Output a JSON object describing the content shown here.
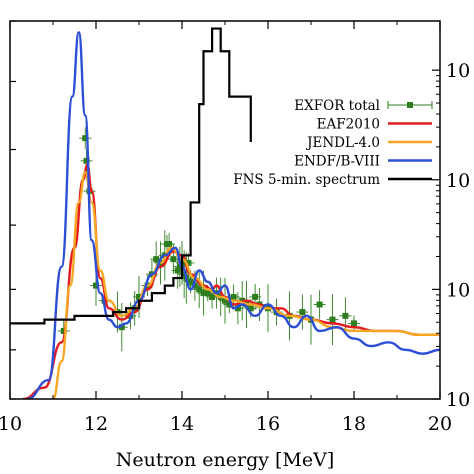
{
  "chart_data": {
    "type": "line",
    "xlabel": "Neutron energy [MeV]",
    "ylabel": "",
    "xlim": [
      10,
      20
    ],
    "x_ticks": [
      10,
      12,
      14,
      16,
      18,
      20
    ],
    "right_tick_labels": [
      "10",
      "10",
      "10",
      "10"
    ],
    "grid": false,
    "legend_position": "right",
    "colors": {
      "exfor": "#2e7d1e",
      "eaf": "#e41a1c",
      "jendl": "#f5a623",
      "endf": "#2c4fd6",
      "fns": "#000000"
    },
    "series": [
      {
        "name": "EXFOR total",
        "color": "#2e7d1e",
        "style": "points",
        "points": [
          [
            11.25,
            0.18
          ],
          [
            11.75,
            0.69
          ],
          [
            11.78,
            0.63
          ],
          [
            11.85,
            0.55
          ],
          [
            12.0,
            0.3
          ],
          [
            12.2,
            0.26
          ],
          [
            12.5,
            0.23
          ],
          [
            12.6,
            0.19
          ],
          [
            12.8,
            0.22
          ],
          [
            12.9,
            0.24
          ],
          [
            13.0,
            0.27
          ],
          [
            13.2,
            0.3
          ],
          [
            13.3,
            0.33
          ],
          [
            13.4,
            0.37
          ],
          [
            13.5,
            0.36
          ],
          [
            13.6,
            0.38
          ],
          [
            13.65,
            0.41
          ],
          [
            13.7,
            0.41
          ],
          [
            13.8,
            0.37
          ],
          [
            13.9,
            0.34
          ],
          [
            13.95,
            0.35
          ],
          [
            14.0,
            0.36
          ],
          [
            14.05,
            0.33
          ],
          [
            14.1,
            0.32
          ],
          [
            14.15,
            0.36
          ],
          [
            14.2,
            0.31
          ],
          [
            14.3,
            0.3
          ],
          [
            14.4,
            0.29
          ],
          [
            14.5,
            0.28
          ],
          [
            14.6,
            0.28
          ],
          [
            14.7,
            0.27
          ],
          [
            14.8,
            0.28
          ],
          [
            14.9,
            0.27
          ],
          [
            15.0,
            0.26
          ],
          [
            15.1,
            0.25
          ],
          [
            15.2,
            0.27
          ],
          [
            15.3,
            0.24
          ],
          [
            15.4,
            0.26
          ],
          [
            15.5,
            0.25
          ],
          [
            15.6,
            0.24
          ],
          [
            15.7,
            0.27
          ],
          [
            15.8,
            0.25
          ],
          [
            16.0,
            0.24
          ],
          [
            16.2,
            0.23
          ],
          [
            16.5,
            0.22
          ],
          [
            16.8,
            0.23
          ],
          [
            17.0,
            0.21
          ],
          [
            17.2,
            0.25
          ],
          [
            17.5,
            0.21
          ],
          [
            17.8,
            0.22
          ],
          [
            18.0,
            0.2
          ]
        ]
      },
      {
        "name": "EAF2010",
        "color": "#e41a1c",
        "style": "line",
        "points": [
          [
            10.3,
            0.0
          ],
          [
            10.8,
            0.03
          ],
          [
            11.2,
            0.15
          ],
          [
            11.5,
            0.4
          ],
          [
            11.7,
            0.58
          ],
          [
            11.8,
            0.62
          ],
          [
            11.9,
            0.55
          ],
          [
            12.1,
            0.32
          ],
          [
            12.3,
            0.24
          ],
          [
            12.6,
            0.21
          ],
          [
            12.9,
            0.23
          ],
          [
            13.2,
            0.29
          ],
          [
            13.5,
            0.35
          ],
          [
            13.8,
            0.39
          ],
          [
            14.0,
            0.38
          ],
          [
            14.2,
            0.33
          ],
          [
            14.5,
            0.3
          ],
          [
            14.7,
            0.29
          ],
          [
            14.8,
            0.3
          ],
          [
            15.0,
            0.27
          ],
          [
            15.2,
            0.25
          ],
          [
            15.5,
            0.26
          ],
          [
            15.8,
            0.25
          ],
          [
            16.0,
            0.24
          ],
          [
            16.3,
            0.24
          ],
          [
            16.6,
            0.22
          ],
          [
            17.0,
            0.21
          ],
          [
            17.5,
            0.2
          ],
          [
            18.0,
            0.19
          ],
          [
            18.5,
            0.18
          ],
          [
            19.0,
            0.18
          ],
          [
            19.5,
            0.17
          ],
          [
            20.0,
            0.17
          ]
        ]
      },
      {
        "name": "JENDL-4.0",
        "color": "#f5a623",
        "style": "line",
        "points": [
          [
            11.0,
            0.0
          ],
          [
            11.2,
            0.1
          ],
          [
            11.4,
            0.3
          ],
          [
            11.6,
            0.52
          ],
          [
            11.75,
            0.6
          ],
          [
            11.9,
            0.52
          ],
          [
            12.1,
            0.34
          ],
          [
            12.3,
            0.26
          ],
          [
            12.6,
            0.22
          ],
          [
            12.9,
            0.24
          ],
          [
            13.2,
            0.3
          ],
          [
            13.5,
            0.36
          ],
          [
            13.75,
            0.4
          ],
          [
            14.0,
            0.37
          ],
          [
            14.3,
            0.32
          ],
          [
            14.6,
            0.29
          ],
          [
            14.9,
            0.27
          ],
          [
            15.2,
            0.26
          ],
          [
            15.6,
            0.25
          ],
          [
            16.0,
            0.24
          ],
          [
            16.5,
            0.22
          ],
          [
            17.0,
            0.21
          ],
          [
            17.5,
            0.19
          ],
          [
            18.0,
            0.18
          ],
          [
            18.5,
            0.18
          ],
          [
            19.0,
            0.18
          ],
          [
            19.5,
            0.17
          ],
          [
            20.0,
            0.17
          ]
        ]
      },
      {
        "name": "ENDF/B-VIII",
        "color": "#2c4fd6",
        "style": "line",
        "points": [
          [
            10.4,
            0.0
          ],
          [
            10.9,
            0.05
          ],
          [
            11.2,
            0.35
          ],
          [
            11.45,
            0.8
          ],
          [
            11.6,
            0.97
          ],
          [
            11.75,
            0.75
          ],
          [
            11.9,
            0.42
          ],
          [
            12.1,
            0.28
          ],
          [
            12.3,
            0.21
          ],
          [
            12.5,
            0.19
          ],
          [
            12.7,
            0.2
          ],
          [
            13.0,
            0.26
          ],
          [
            13.3,
            0.33
          ],
          [
            13.6,
            0.38
          ],
          [
            13.85,
            0.4
          ],
          [
            14.0,
            0.35
          ],
          [
            14.2,
            0.29
          ],
          [
            14.4,
            0.34
          ],
          [
            14.6,
            0.31
          ],
          [
            14.8,
            0.28
          ],
          [
            15.0,
            0.3
          ],
          [
            15.2,
            0.24
          ],
          [
            15.4,
            0.25
          ],
          [
            15.7,
            0.22
          ],
          [
            16.0,
            0.25
          ],
          [
            16.3,
            0.22
          ],
          [
            16.6,
            0.19
          ],
          [
            16.9,
            0.22
          ],
          [
            17.2,
            0.18
          ],
          [
            17.6,
            0.19
          ],
          [
            18.0,
            0.16
          ],
          [
            18.4,
            0.14
          ],
          [
            18.8,
            0.15
          ],
          [
            19.2,
            0.13
          ],
          [
            19.6,
            0.12
          ],
          [
            20.0,
            0.13
          ]
        ]
      },
      {
        "name": "FNS 5-min. spectrum",
        "color": "#000000",
        "style": "step",
        "points": [
          [
            10.0,
            0.2
          ],
          [
            10.8,
            0.21
          ],
          [
            11.5,
            0.22
          ],
          [
            12.0,
            0.22
          ],
          [
            12.4,
            0.23
          ],
          [
            12.7,
            0.24
          ],
          [
            13.0,
            0.26
          ],
          [
            13.3,
            0.28
          ],
          [
            13.6,
            0.3
          ],
          [
            13.8,
            0.32
          ],
          [
            14.0,
            0.38
          ],
          [
            14.2,
            0.52
          ],
          [
            14.4,
            0.78
          ],
          [
            14.5,
            0.92
          ],
          [
            14.7,
            0.98
          ],
          [
            14.9,
            0.92
          ],
          [
            15.1,
            0.8
          ],
          [
            15.6,
            0.68
          ]
        ]
      }
    ]
  }
}
